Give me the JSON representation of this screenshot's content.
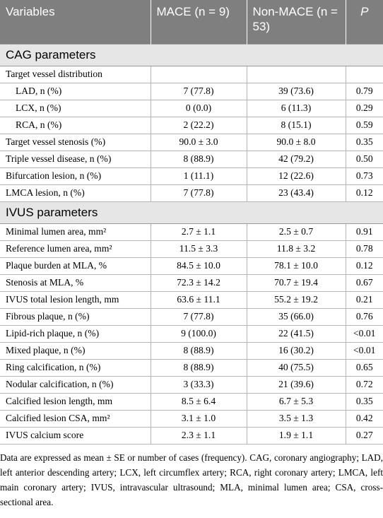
{
  "header": [
    "Variables",
    "MACE (n = 9)",
    "Non-MACE (n = 53)",
    "P"
  ],
  "sections": [
    {
      "title": "CAG parameters",
      "rows": [
        [
          "Target vessel distribution"
        ],
        [
          "LAD, n (%)",
          "7 (77.8)",
          "39 (73.6)",
          "0.79"
        ],
        [
          "LCX, n (%)",
          "0 (0.0)",
          "6 (11.3)",
          "0.29"
        ],
        [
          "RCA, n (%)",
          "2 (22.2)",
          "8 (15.1)",
          "0.59"
        ],
        [
          "Target vessel stenosis (%)",
          "90.0 ± 3.0",
          "90.0 ± 8.0",
          "0.35"
        ],
        [
          "Triple vessel disease, n (%)",
          "8 (88.9)",
          "42 (79.2)",
          "0.50"
        ],
        [
          "Bifurcation lesion, n (%)",
          "1 (11.1)",
          "12 (22.6)",
          "0.73"
        ],
        [
          "LMCA lesion, n (%)",
          "7 (77.8)",
          "23 (43.4)",
          "0.12"
        ]
      ]
    },
    {
      "title": "IVUS parameters",
      "rows": [
        [
          "Minimal lumen area, mm²",
          "2.7 ± 1.1",
          "2.5 ± 0.7",
          "0.91"
        ],
        [
          "Reference lumen area, mm²",
          "11.5 ± 3.3",
          "11.8 ± 3.2",
          "0.78"
        ],
        [
          "Plaque burden at MLA, %",
          "84.5 ± 10.0",
          "78.1 ± 10.0",
          "0.12"
        ],
        [
          "Stenosis at MLA, %",
          "72.3 ± 14.2",
          "70.7 ± 19.4",
          "0.67"
        ],
        [
          "IVUS total lesion length, mm",
          "63.6 ± 11.1",
          "55.2 ± 19.2",
          "0.21"
        ],
        [
          "Fibrous plaque, n (%)",
          "7 (77.8)",
          "35 (66.0)",
          "0.76"
        ],
        [
          "Lipid-rich plaque, n (%)",
          "9 (100.0)",
          "22 (41.5)",
          "<0.01"
        ],
        [
          "Mixed plaque, n (%)",
          "8 (88.9)",
          "16 (30.2)",
          "<0.01"
        ],
        [
          "Ring calcification, n (%)",
          "8 (88.9)",
          "40 (75.5)",
          "0.65"
        ],
        [
          "Nodular calcification, n (%)",
          "3 (33.3)",
          "21 (39.6)",
          "0.72"
        ],
        [
          "Calcified lesion length, mm",
          "8.5 ± 6.4",
          "6.7 ± 5.3",
          "0.35"
        ],
        [
          "Calcified lesion CSA, mm²",
          "3.1 ± 1.0",
          "3.5 ± 1.3",
          "0.42"
        ],
        [
          "IVUS calcium score",
          "2.3 ± 1.1",
          "1.9 ± 1.1",
          "0.27"
        ]
      ]
    }
  ],
  "footnote": "Data are expressed as mean ± SE or number of cases (frequency). CAG, coronary angiography; LAD, left anterior descending artery; LCX, left circumflex artery; RCA, right coronary artery; LMCA, left main coronary artery; IVUS, intravascular ultrasound; MLA, minimal lumen area; CSA, cross-sectional area."
}
